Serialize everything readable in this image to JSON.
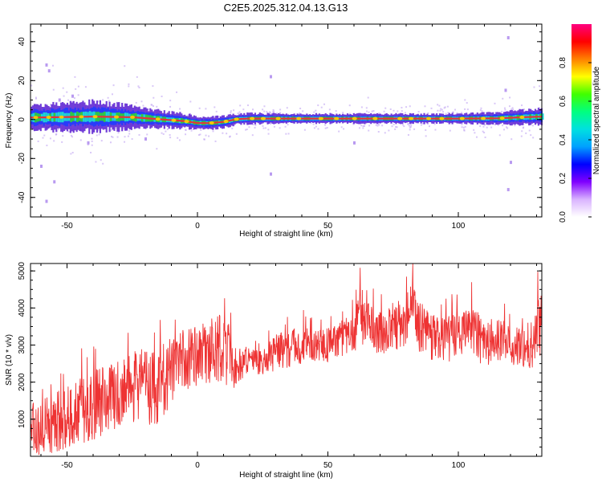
{
  "title": "C2E5.2025.312.04.13.G13",
  "colors": {
    "axis": "#000000",
    "snr_line": "#ee3333",
    "trace_core": "#e8303a",
    "trace_mid": "#2ecc40",
    "trace_halo": "#1fd3d3",
    "trace_outer": "#5a1fd1",
    "trace_scatter": "#b99af0"
  },
  "colorbar": {
    "label": "Normalized spectral amplitude",
    "range": [
      0.0,
      1.0
    ],
    "tick_values": [
      0.0,
      0.2,
      0.4,
      0.6,
      0.8
    ],
    "tick_labels": [
      "0.0",
      "0.2",
      "0.4",
      "0.6",
      "0.8"
    ],
    "colormap": [
      "#ffffff",
      "#d9b3ff",
      "#8000ff",
      "#0000ff",
      "#00a0ff",
      "#00e0e0",
      "#00ff80",
      "#40ff00",
      "#ffff00",
      "#ff8000",
      "#ff0000",
      "#ff0080"
    ]
  },
  "chart_data": [
    {
      "type": "heatmap",
      "name": "spectrogram",
      "xlabel": "Height of straight line (km)",
      "ylabel": "Frequency (Hz)",
      "xlim": [
        -64,
        132
      ],
      "ylim": [
        -50,
        49
      ],
      "x_ticks": [
        -50,
        0,
        50,
        100
      ],
      "x_tick_labels": [
        "-50",
        "0",
        "50",
        "100"
      ],
      "y_ticks": [
        -40,
        -20,
        0,
        20,
        40
      ],
      "y_tick_labels": [
        "-40",
        "-20",
        "0",
        "20",
        "40"
      ],
      "trace_center": {
        "x": [
          -64,
          -40,
          -25,
          -15,
          -5,
          0,
          5,
          10,
          15,
          20,
          40,
          80,
          100,
          115,
          125,
          132
        ],
        "freq": [
          1.0,
          1.5,
          1.2,
          0.2,
          -0.8,
          -1.8,
          -1.8,
          -1.2,
          0.2,
          0.5,
          0.5,
          0.5,
          0.5,
          0.6,
          1.2,
          1.5
        ]
      },
      "trace_halfwidth": {
        "x": [
          -64,
          -40,
          -25,
          -15,
          0,
          15,
          40,
          80,
          100,
          115,
          132
        ],
        "hz": [
          6,
          7,
          5.5,
          4,
          3,
          2.5,
          2.2,
          2.2,
          2.3,
          2.8,
          4
        ]
      },
      "sparse_outliers": [
        {
          "x": -58,
          "freq": 28
        },
        {
          "x": -57,
          "freq": 25
        },
        {
          "x": -53,
          "freq": 10
        },
        {
          "x": -60,
          "freq": -24
        },
        {
          "x": -58,
          "freq": -42
        },
        {
          "x": -55,
          "freq": -32
        },
        {
          "x": -48,
          "freq": 12
        },
        {
          "x": -42,
          "freq": -12
        },
        {
          "x": 28,
          "freq": 22
        },
        {
          "x": 28,
          "freq": -28
        },
        {
          "x": 119,
          "freq": 42
        },
        {
          "x": 119,
          "freq": -36
        },
        {
          "x": 120,
          "freq": -22
        },
        {
          "x": 118,
          "freq": 15
        },
        {
          "x": -20,
          "freq": -10
        },
        {
          "x": 60,
          "freq": -12
        }
      ]
    },
    {
      "type": "line",
      "name": "snr",
      "xlabel": "Height of straight line (km)",
      "ylabel": "SNR (10 * v/v)",
      "xlim": [
        -64,
        132
      ],
      "ylim": [
        0,
        5200
      ],
      "x_ticks": [
        -50,
        0,
        50,
        100
      ],
      "x_tick_labels": [
        "-50",
        "0",
        "50",
        "100"
      ],
      "y_ticks": [
        1000,
        2000,
        3000,
        4000,
        5000
      ],
      "y_tick_labels": [
        "1000",
        "2000",
        "3000",
        "4000",
        "5000"
      ],
      "envelope": {
        "x": [
          -64,
          -55,
          -45,
          -35,
          -25,
          -15,
          -10,
          -5,
          0,
          5,
          10,
          15,
          20,
          25,
          30,
          40,
          50,
          55,
          60,
          63,
          65,
          70,
          75,
          80,
          82,
          85,
          90,
          95,
          100,
          105,
          110,
          115,
          120,
          125,
          130,
          132
        ],
        "mean": [
          700,
          900,
          1200,
          1500,
          1900,
          1900,
          2300,
          2600,
          2700,
          2800,
          2900,
          2400,
          2600,
          2500,
          2800,
          3000,
          3000,
          3200,
          3300,
          3800,
          3600,
          3300,
          3500,
          3600,
          4300,
          3500,
          3200,
          3100,
          3300,
          3500,
          3000,
          3200,
          3000,
          2900,
          3100,
          3600
        ],
        "amplitude": [
          700,
          800,
          900,
          1000,
          1000,
          1100,
          900,
          900,
          800,
          900,
          1000,
          700,
          300,
          350,
          500,
          500,
          450,
          500,
          550,
          800,
          600,
          600,
          700,
          650,
          650,
          700,
          650,
          650,
          600,
          650,
          650,
          600,
          500,
          550,
          900,
          1200
        ]
      },
      "samples": 1400
    }
  ]
}
